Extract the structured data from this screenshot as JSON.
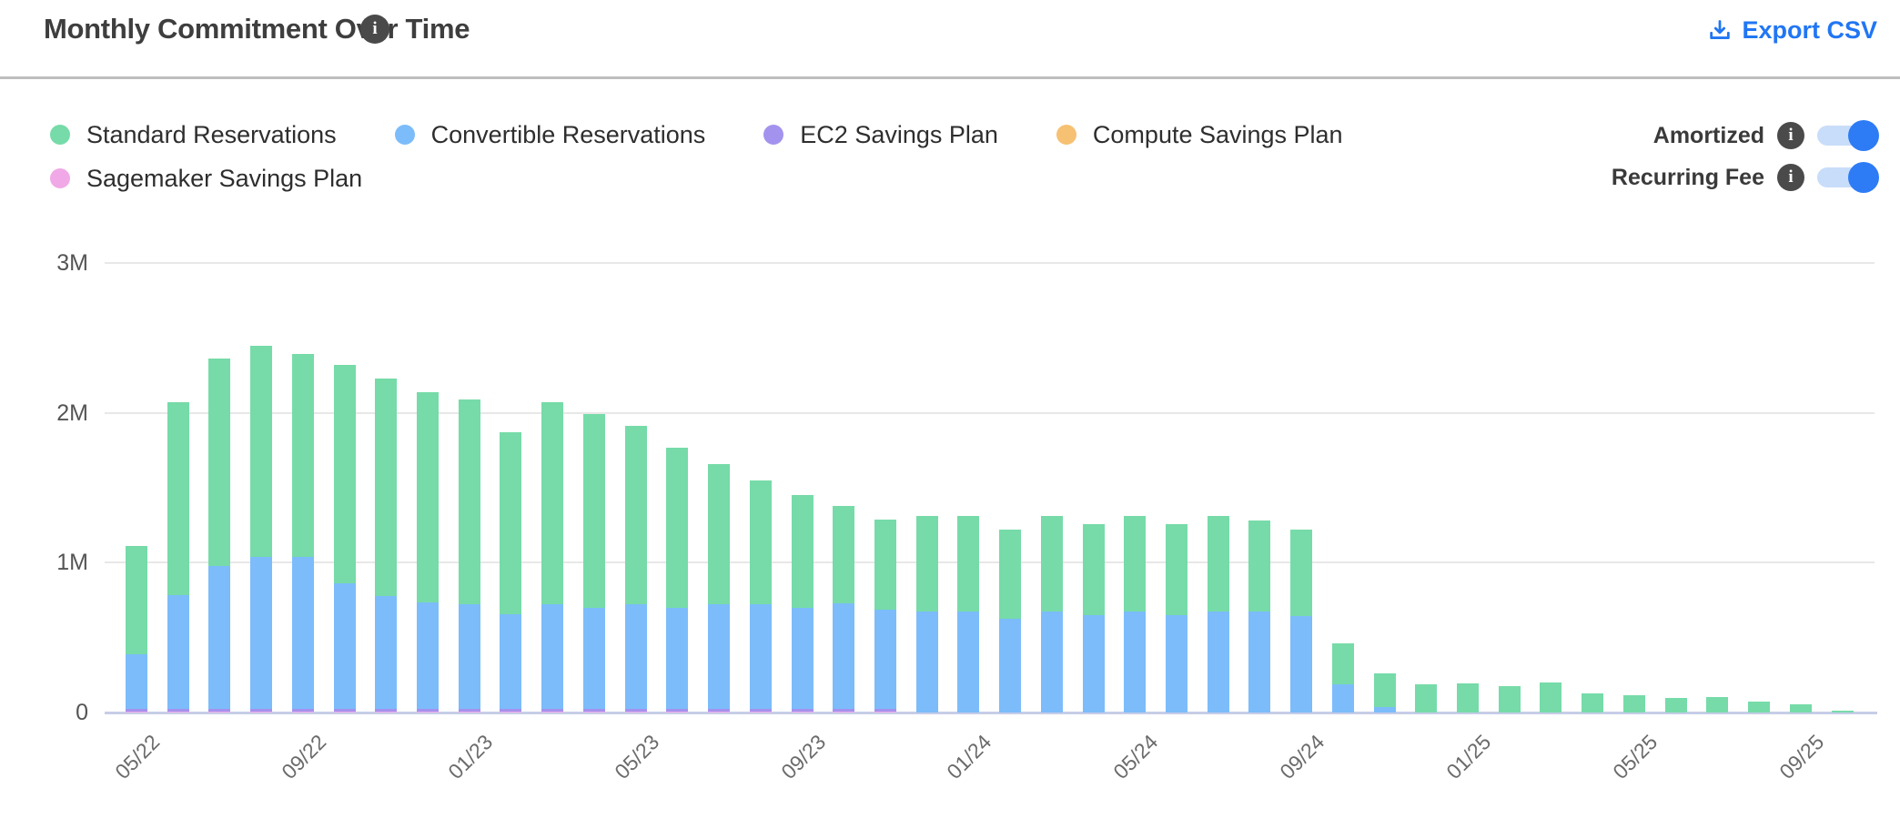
{
  "header": {
    "title": "Monthly Commitment Over Time",
    "title_info_icon": "info-icon",
    "export_label": "Export CSV"
  },
  "legend": {
    "items": [
      {
        "label": "Standard Reservations",
        "color": "#76dba8"
      },
      {
        "label": "Convertible Reservations",
        "color": "#7cbcfa"
      },
      {
        "label": "EC2 Savings Plan",
        "color": "#a393ee"
      },
      {
        "label": "Compute Savings Plan",
        "color": "#f6c172"
      },
      {
        "label": "Sagemaker Savings Plan",
        "color": "#f0a9e6"
      }
    ]
  },
  "toggles": {
    "amortized": {
      "label": "Amortized",
      "state": "on"
    },
    "recurring": {
      "label": "Recurring Fee",
      "state": "on"
    }
  },
  "colors": {
    "accent_blue": "#2176f3",
    "toggle_track": "#c8ddf9",
    "toggle_knob": "#2e7cf5",
    "info_icon_bg": "#4a4a4a",
    "gridline": "#e8e8e8",
    "axis_line": "#c7cde8",
    "title_text": "#3e3e3e",
    "axis_label": "#6b6b6b"
  },
  "chart_data": {
    "type": "bar",
    "stacked": true,
    "title": "Monthly Commitment Over Time",
    "xlabel": "",
    "ylabel": "",
    "unit": "M",
    "ylim": [
      0,
      3
    ],
    "y_ticks": [
      {
        "value": 0,
        "label": "0"
      },
      {
        "value": 1,
        "label": "1M"
      },
      {
        "value": 2,
        "label": "2M"
      },
      {
        "value": 3,
        "label": "3M"
      }
    ],
    "x_tick_every": 4,
    "grid": "horizontal",
    "legend_position": "top-left",
    "categories": [
      "05/22",
      "06/22",
      "07/22",
      "08/22",
      "09/22",
      "10/22",
      "11/22",
      "12/22",
      "01/23",
      "02/23",
      "03/23",
      "04/23",
      "05/23",
      "06/23",
      "07/23",
      "08/23",
      "09/23",
      "10/23",
      "11/23",
      "12/23",
      "01/24",
      "02/24",
      "03/24",
      "04/24",
      "05/24",
      "06/24",
      "07/24",
      "08/24",
      "09/24",
      "10/24",
      "11/24",
      "12/24",
      "01/25",
      "02/25",
      "03/25",
      "04/25",
      "05/25",
      "06/25",
      "07/25",
      "08/25",
      "09/25",
      "10/25"
    ],
    "series": [
      {
        "name": "Standard Reservations",
        "color": "#76dba8",
        "values": [
          0.72,
          1.285,
          1.38,
          1.41,
          1.35,
          1.46,
          1.45,
          1.405,
          1.37,
          1.215,
          1.345,
          1.29,
          1.185,
          1.07,
          0.935,
          0.83,
          0.75,
          0.65,
          0.605,
          0.635,
          0.635,
          0.595,
          0.635,
          0.61,
          0.635,
          0.61,
          0.635,
          0.605,
          0.575,
          0.27,
          0.225,
          0.19,
          0.195,
          0.175,
          0.2,
          0.125,
          0.115,
          0.1,
          0.105,
          0.075,
          0.055,
          0.015
        ]
      },
      {
        "name": "Convertible Reservations",
        "color": "#7cbcfa",
        "values": [
          0.365,
          0.76,
          0.955,
          1.015,
          1.015,
          0.835,
          0.755,
          0.71,
          0.695,
          0.63,
          0.7,
          0.675,
          0.7,
          0.675,
          0.7,
          0.695,
          0.675,
          0.705,
          0.66,
          0.675,
          0.675,
          0.625,
          0.675,
          0.65,
          0.675,
          0.65,
          0.675,
          0.675,
          0.645,
          0.19,
          0.035,
          0,
          0,
          0,
          0,
          0,
          0,
          0,
          0,
          0,
          0,
          0
        ]
      },
      {
        "name": "EC2 Savings Plan",
        "color": "#a393ee",
        "values": [
          0.02,
          0.02,
          0.02,
          0.02,
          0.02,
          0.02,
          0.02,
          0.02,
          0.02,
          0.02,
          0.02,
          0.02,
          0.02,
          0.02,
          0.02,
          0.02,
          0.02,
          0.02,
          0.02,
          0,
          0,
          0,
          0,
          0,
          0,
          0,
          0,
          0,
          0,
          0,
          0,
          0,
          0,
          0,
          0,
          0,
          0,
          0,
          0,
          0,
          0,
          0
        ]
      },
      {
        "name": "Compute Savings Plan",
        "color": "#f6c172",
        "values": [
          0,
          0,
          0,
          0,
          0,
          0,
          0,
          0,
          0,
          0,
          0,
          0,
          0,
          0,
          0,
          0,
          0,
          0,
          0,
          0,
          0,
          0,
          0,
          0,
          0,
          0,
          0,
          0,
          0,
          0,
          0,
          0,
          0,
          0,
          0,
          0,
          0,
          0,
          0,
          0,
          0,
          0
        ]
      },
      {
        "name": "Sagemaker Savings Plan",
        "color": "#f0a9e6",
        "values": [
          0.005,
          0.005,
          0.005,
          0.005,
          0.005,
          0.005,
          0.005,
          0.005,
          0.005,
          0.005,
          0.005,
          0.005,
          0.005,
          0.005,
          0.005,
          0.005,
          0.005,
          0.005,
          0.005,
          0,
          0,
          0,
          0,
          0,
          0,
          0,
          0,
          0,
          0,
          0,
          0,
          0,
          0,
          0,
          0,
          0,
          0,
          0,
          0,
          0,
          0,
          0
        ]
      }
    ]
  }
}
